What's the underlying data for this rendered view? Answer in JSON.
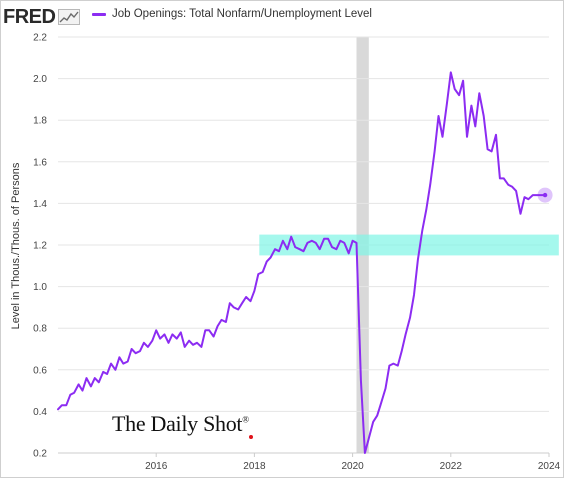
{
  "brand": {
    "logo_text": "FRED",
    "logo_icon": "sparkline-chart-icon"
  },
  "watermark": {
    "text": "The Daily Shot",
    "mark": "®"
  },
  "colors": {
    "series": "#8c2cf2",
    "highlight_band": "#7ff5e6",
    "recession": "#d9d9d9",
    "grid": "#e5e5e5"
  },
  "chart_data": {
    "type": "line",
    "title": "",
    "legend_entry": "Job Openings: Total Nonfarm/Unemployment Level",
    "ylabel": "Level in Thous./Thous. of Persons",
    "xlabel": "",
    "xlim": [
      2014.0,
      2024.0
    ],
    "ylim": [
      0.2,
      2.2
    ],
    "yticks": [
      "0.2",
      "0.4",
      "0.6",
      "0.8",
      "1.0",
      "1.2",
      "1.4",
      "1.6",
      "1.8",
      "2.0",
      "2.2"
    ],
    "xticks": [
      "2016",
      "2018",
      "2020",
      "2022",
      "2024"
    ],
    "grid": "horizontal",
    "recession_shading": [
      2020.08,
      2020.33
    ],
    "highlight_band": {
      "y_range": [
        1.15,
        1.25
      ],
      "x_range": [
        2018.1,
        2024.2
      ]
    },
    "end_marker": {
      "x": 2023.92,
      "y": 1.44
    },
    "series": [
      {
        "name": "Job Openings: Total Nonfarm/Unemployment Level",
        "x": [
          2014.0,
          2014.08,
          2014.17,
          2014.25,
          2014.33,
          2014.42,
          2014.5,
          2014.58,
          2014.67,
          2014.75,
          2014.83,
          2014.92,
          2015.0,
          2015.08,
          2015.17,
          2015.25,
          2015.33,
          2015.42,
          2015.5,
          2015.58,
          2015.67,
          2015.75,
          2015.83,
          2015.92,
          2016.0,
          2016.08,
          2016.17,
          2016.25,
          2016.33,
          2016.42,
          2016.5,
          2016.58,
          2016.67,
          2016.75,
          2016.83,
          2016.92,
          2017.0,
          2017.08,
          2017.17,
          2017.25,
          2017.33,
          2017.42,
          2017.5,
          2017.58,
          2017.67,
          2017.75,
          2017.83,
          2017.92,
          2018.0,
          2018.08,
          2018.17,
          2018.25,
          2018.33,
          2018.42,
          2018.5,
          2018.58,
          2018.67,
          2018.75,
          2018.83,
          2018.92,
          2019.0,
          2019.08,
          2019.17,
          2019.25,
          2019.33,
          2019.42,
          2019.5,
          2019.58,
          2019.67,
          2019.75,
          2019.83,
          2019.92,
          2020.0,
          2020.08,
          2020.17,
          2020.25,
          2020.33,
          2020.42,
          2020.5,
          2020.58,
          2020.67,
          2020.75,
          2020.83,
          2020.92,
          2021.0,
          2021.08,
          2021.17,
          2021.25,
          2021.33,
          2021.42,
          2021.5,
          2021.58,
          2021.67,
          2021.75,
          2021.83,
          2021.92,
          2022.0,
          2022.08,
          2022.17,
          2022.25,
          2022.33,
          2022.42,
          2022.5,
          2022.58,
          2022.67,
          2022.75,
          2022.83,
          2022.92,
          2023.0,
          2023.08,
          2023.17,
          2023.25,
          2023.33,
          2023.42,
          2023.5,
          2023.58,
          2023.67,
          2023.75,
          2023.83,
          2023.92
        ],
        "y": [
          0.41,
          0.43,
          0.43,
          0.48,
          0.49,
          0.53,
          0.5,
          0.56,
          0.52,
          0.56,
          0.54,
          0.59,
          0.58,
          0.63,
          0.6,
          0.66,
          0.63,
          0.64,
          0.7,
          0.68,
          0.69,
          0.73,
          0.71,
          0.74,
          0.79,
          0.75,
          0.77,
          0.73,
          0.77,
          0.75,
          0.78,
          0.71,
          0.74,
          0.72,
          0.73,
          0.71,
          0.79,
          0.79,
          0.76,
          0.81,
          0.84,
          0.83,
          0.92,
          0.9,
          0.89,
          0.92,
          0.95,
          0.93,
          0.98,
          1.06,
          1.07,
          1.12,
          1.14,
          1.18,
          1.17,
          1.22,
          1.18,
          1.24,
          1.19,
          1.18,
          1.17,
          1.21,
          1.22,
          1.21,
          1.18,
          1.23,
          1.23,
          1.19,
          1.18,
          1.22,
          1.21,
          1.16,
          1.22,
          1.21,
          0.55,
          0.2,
          0.27,
          0.35,
          0.38,
          0.44,
          0.51,
          0.62,
          0.63,
          0.62,
          0.69,
          0.77,
          0.85,
          0.96,
          1.13,
          1.27,
          1.37,
          1.49,
          1.65,
          1.82,
          1.72,
          1.88,
          2.03,
          1.95,
          1.92,
          1.99,
          1.72,
          1.87,
          1.77,
          1.93,
          1.82,
          1.66,
          1.65,
          1.73,
          1.52,
          1.52,
          1.49,
          1.48,
          1.46,
          1.35,
          1.43,
          1.42,
          1.44,
          1.44,
          1.44,
          1.44
        ]
      }
    ]
  }
}
